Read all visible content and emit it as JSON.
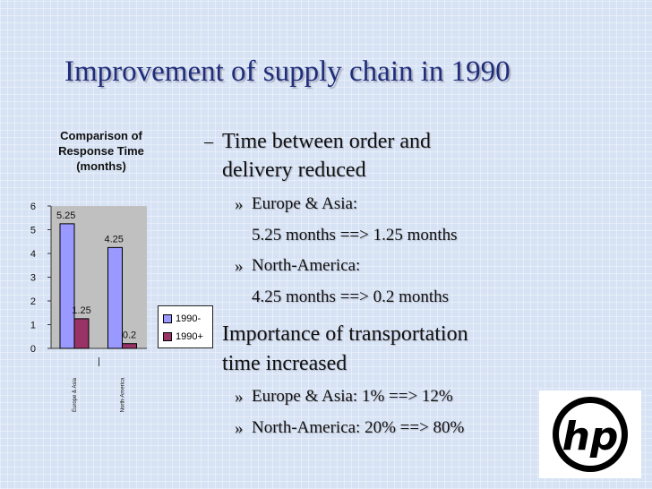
{
  "slide": {
    "title": "Improvement of supply chain in 1990"
  },
  "chart_data": {
    "type": "bar",
    "title_lines": [
      "Comparison of",
      "Response Time",
      "(months)"
    ],
    "categories": [
      "Europe & Asia",
      "North-America"
    ],
    "series": [
      {
        "name": "1990-",
        "values": [
          5.25,
          4.25
        ],
        "color": "#9999ff"
      },
      {
        "name": "1990+",
        "values": [
          1.25,
          0.2
        ],
        "color": "#993366"
      }
    ],
    "ylim": [
      0,
      6
    ],
    "yticks": [
      "0",
      "1",
      "2",
      "3",
      "4",
      "5",
      "6"
    ],
    "data_labels": [
      "5.25",
      "4.25",
      "1.25",
      "0.2"
    ],
    "grid": false,
    "legend_position": "right",
    "plot_area_color": "#c0c0c0"
  },
  "bullets": {
    "b1_dash": "–",
    "b1_line1": "Time between order and",
    "b1_line2": "delivery reduced",
    "sub_marker": "»",
    "s1_line1": "Europe & Asia:",
    "s1_line2": "5.25 months  ==>  1.25 months",
    "s2_line1": "North-America:",
    "s2_line2": "4.25 months  ==>  0.2  months",
    "b2_line1": "Importance of transportation",
    "b2_line2": "time increased",
    "s3": "Europe & Asia: 1%    ==>  12%",
    "s4": "North-America: 20%  ==>  80%"
  },
  "logo": {
    "text": "hp",
    "icon": "hp-logo-icon"
  }
}
